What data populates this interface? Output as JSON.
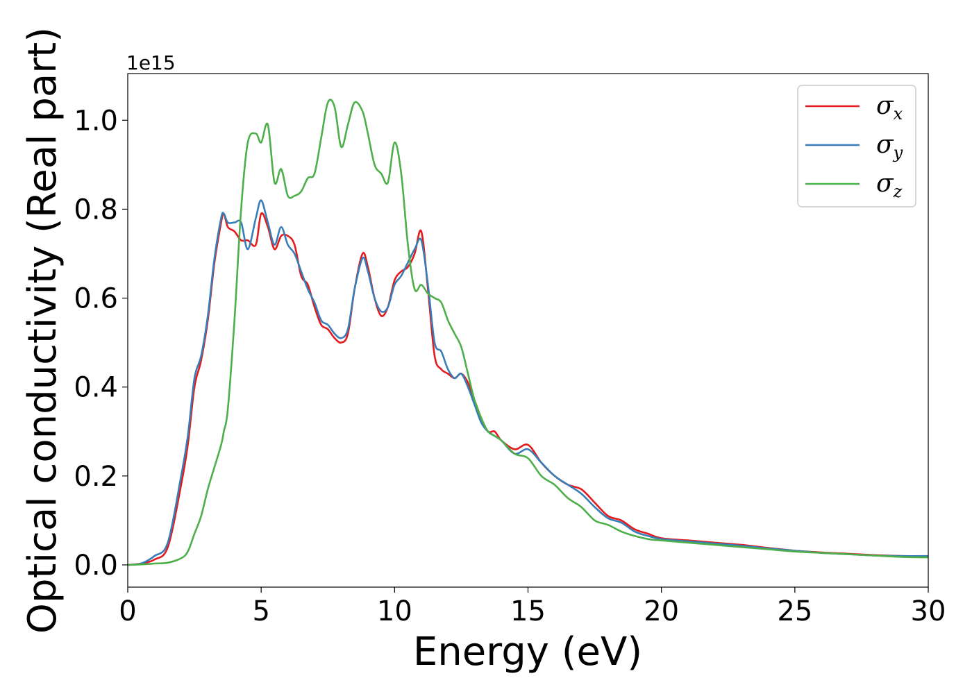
{
  "chart_data": {
    "type": "line",
    "xlabel": "Energy (eV)",
    "ylabel": "Optical conductivity (Real part)",
    "y_offset_label": "1e15",
    "xlim": [
      0,
      30
    ],
    "ylim": [
      -0.05,
      1.105
    ],
    "xticks": [
      0,
      5,
      10,
      15,
      20,
      25,
      30
    ],
    "xtick_labels": [
      "0",
      "5",
      "10",
      "15",
      "20",
      "25",
      "30"
    ],
    "yticks": [
      0.0,
      0.2,
      0.4,
      0.6,
      0.8,
      1.0
    ],
    "ytick_labels": [
      "0.0",
      "0.2",
      "0.4",
      "0.6",
      "0.8",
      "1.0"
    ],
    "grid": false,
    "legend_position": "top-right",
    "x": [
      0,
      0.5,
      1.0,
      1.5,
      2.0,
      2.25,
      2.5,
      2.75,
      3.0,
      3.25,
      3.5,
      3.6,
      3.75,
      4.0,
      4.25,
      4.5,
      4.8,
      5.0,
      5.25,
      5.5,
      5.75,
      6.0,
      6.25,
      6.5,
      6.75,
      7.0,
      7.25,
      7.5,
      7.75,
      8.0,
      8.25,
      8.5,
      8.8,
      9.0,
      9.25,
      9.5,
      9.75,
      10.0,
      10.25,
      10.5,
      10.75,
      11.0,
      11.25,
      11.5,
      11.75,
      12.0,
      12.25,
      12.5,
      12.75,
      13.0,
      13.25,
      13.5,
      13.75,
      14.0,
      14.5,
      15.0,
      15.5,
      16.0,
      16.5,
      17.0,
      17.5,
      18.0,
      18.5,
      19.0,
      19.5,
      20.0,
      21.0,
      22.0,
      23.0,
      24.0,
      25.0,
      26.0,
      27.0,
      28.0,
      29.0,
      30.0
    ],
    "series": [
      {
        "name": "σ",
        "subscript": "x",
        "color": "#e41a1c",
        "values": [
          0.0,
          0.003,
          0.012,
          0.04,
          0.18,
          0.27,
          0.4,
          0.46,
          0.55,
          0.68,
          0.77,
          0.79,
          0.76,
          0.75,
          0.73,
          0.73,
          0.72,
          0.79,
          0.76,
          0.71,
          0.74,
          0.74,
          0.72,
          0.65,
          0.63,
          0.58,
          0.54,
          0.53,
          0.51,
          0.5,
          0.52,
          0.62,
          0.7,
          0.67,
          0.6,
          0.56,
          0.58,
          0.64,
          0.66,
          0.67,
          0.7,
          0.75,
          0.62,
          0.47,
          0.44,
          0.43,
          0.42,
          0.43,
          0.41,
          0.37,
          0.33,
          0.3,
          0.3,
          0.28,
          0.26,
          0.27,
          0.23,
          0.2,
          0.18,
          0.17,
          0.14,
          0.11,
          0.1,
          0.08,
          0.07,
          0.06,
          0.055,
          0.05,
          0.045,
          0.038,
          0.032,
          0.028,
          0.025,
          0.022,
          0.02,
          0.019
        ]
      },
      {
        "name": "σ",
        "subscript": "y",
        "color": "#377eb8",
        "values": [
          0.0,
          0.003,
          0.02,
          0.05,
          0.2,
          0.29,
          0.42,
          0.47,
          0.56,
          0.69,
          0.78,
          0.79,
          0.77,
          0.77,
          0.77,
          0.71,
          0.78,
          0.82,
          0.77,
          0.72,
          0.76,
          0.72,
          0.7,
          0.66,
          0.62,
          0.59,
          0.55,
          0.54,
          0.52,
          0.51,
          0.53,
          0.62,
          0.69,
          0.66,
          0.6,
          0.57,
          0.58,
          0.63,
          0.65,
          0.68,
          0.71,
          0.73,
          0.63,
          0.5,
          0.48,
          0.44,
          0.42,
          0.43,
          0.4,
          0.36,
          0.32,
          0.3,
          0.29,
          0.28,
          0.25,
          0.26,
          0.23,
          0.2,
          0.18,
          0.16,
          0.13,
          0.105,
          0.095,
          0.075,
          0.065,
          0.058,
          0.053,
          0.048,
          0.043,
          0.037,
          0.032,
          0.027,
          0.024,
          0.021,
          0.02,
          0.02
        ]
      },
      {
        "name": "σ",
        "subscript": "z",
        "color": "#4daf4a",
        "values": [
          0.0,
          0.001,
          0.003,
          0.005,
          0.015,
          0.03,
          0.07,
          0.11,
          0.17,
          0.22,
          0.27,
          0.3,
          0.35,
          0.55,
          0.8,
          0.95,
          0.97,
          0.95,
          0.99,
          0.86,
          0.89,
          0.83,
          0.83,
          0.84,
          0.87,
          0.88,
          0.96,
          1.04,
          1.03,
          0.94,
          0.99,
          1.04,
          1.02,
          0.97,
          0.9,
          0.88,
          0.86,
          0.95,
          0.88,
          0.72,
          0.62,
          0.63,
          0.61,
          0.6,
          0.59,
          0.55,
          0.52,
          0.49,
          0.43,
          0.37,
          0.33,
          0.3,
          0.29,
          0.28,
          0.25,
          0.24,
          0.2,
          0.18,
          0.15,
          0.13,
          0.1,
          0.09,
          0.075,
          0.065,
          0.058,
          0.055,
          0.05,
          0.045,
          0.04,
          0.035,
          0.03,
          0.027,
          0.024,
          0.021,
          0.018,
          0.017
        ]
      }
    ]
  }
}
